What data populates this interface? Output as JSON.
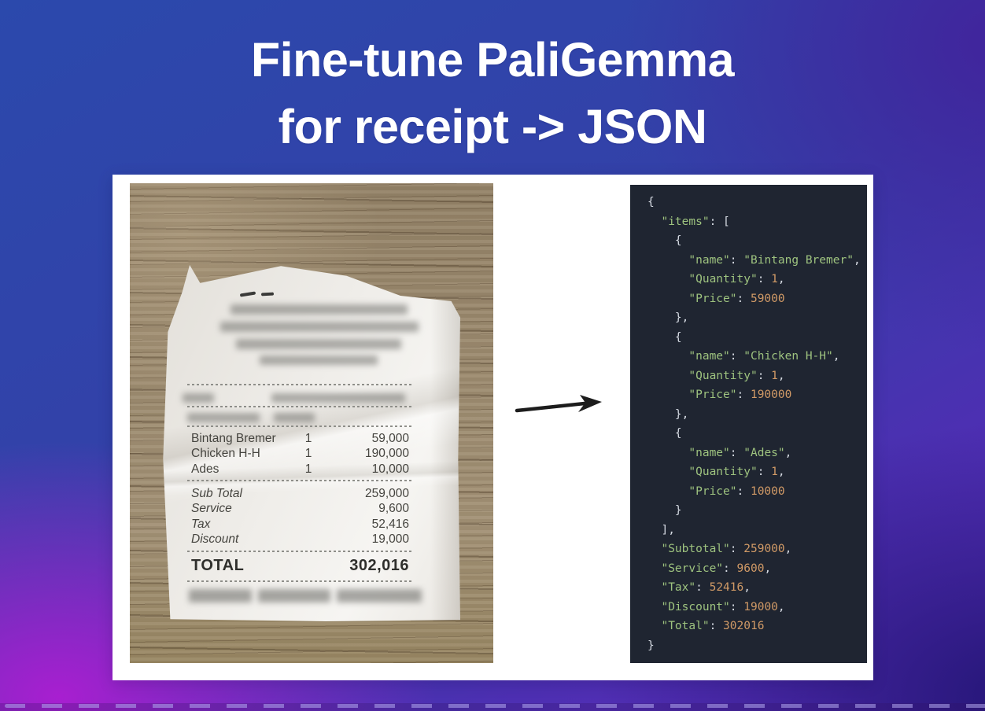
{
  "title": {
    "line1": "Fine-tune PaliGemma",
    "line2": "for receipt -> JSON"
  },
  "receipt_photo": {
    "items": [
      {
        "name": "Bintang Bremer",
        "qty": "1",
        "price": "59,000"
      },
      {
        "name": "Chicken H-H",
        "qty": "1",
        "price": "190,000"
      },
      {
        "name": "Ades",
        "qty": "1",
        "price": "10,000"
      }
    ],
    "summary": [
      {
        "label": "Sub Total",
        "value": "259,000"
      },
      {
        "label": "Service",
        "value": "9,600"
      },
      {
        "label": "Tax",
        "value": "52,416"
      },
      {
        "label": "Discount",
        "value": "19,000"
      }
    ],
    "total": {
      "label": "TOTAL",
      "value": "302,016"
    }
  },
  "json_panel": {
    "lines": [
      [
        {
          "c": "pun",
          "t": "{"
        }
      ],
      [
        {
          "c": "pun",
          "t": "  "
        },
        {
          "c": "key",
          "t": "\"items\""
        },
        {
          "c": "pun",
          "t": ": ["
        }
      ],
      [
        {
          "c": "pun",
          "t": "    {"
        }
      ],
      [
        {
          "c": "pun",
          "t": "      "
        },
        {
          "c": "key",
          "t": "\"name\""
        },
        {
          "c": "pun",
          "t": ": "
        },
        {
          "c": "str",
          "t": "\"Bintang Bremer\""
        },
        {
          "c": "pun",
          "t": ","
        }
      ],
      [
        {
          "c": "pun",
          "t": "      "
        },
        {
          "c": "key",
          "t": "\"Quantity\""
        },
        {
          "c": "pun",
          "t": ": "
        },
        {
          "c": "num",
          "t": "1"
        },
        {
          "c": "pun",
          "t": ","
        }
      ],
      [
        {
          "c": "pun",
          "t": "      "
        },
        {
          "c": "key",
          "t": "\"Price\""
        },
        {
          "c": "pun",
          "t": ": "
        },
        {
          "c": "num",
          "t": "59000"
        }
      ],
      [
        {
          "c": "pun",
          "t": "    },"
        }
      ],
      [
        {
          "c": "pun",
          "t": "    {"
        }
      ],
      [
        {
          "c": "pun",
          "t": "      "
        },
        {
          "c": "key",
          "t": "\"name\""
        },
        {
          "c": "pun",
          "t": ": "
        },
        {
          "c": "str",
          "t": "\"Chicken H-H\""
        },
        {
          "c": "pun",
          "t": ","
        }
      ],
      [
        {
          "c": "pun",
          "t": "      "
        },
        {
          "c": "key",
          "t": "\"Quantity\""
        },
        {
          "c": "pun",
          "t": ": "
        },
        {
          "c": "num",
          "t": "1"
        },
        {
          "c": "pun",
          "t": ","
        }
      ],
      [
        {
          "c": "pun",
          "t": "      "
        },
        {
          "c": "key",
          "t": "\"Price\""
        },
        {
          "c": "pun",
          "t": ": "
        },
        {
          "c": "num",
          "t": "190000"
        }
      ],
      [
        {
          "c": "pun",
          "t": "    },"
        }
      ],
      [
        {
          "c": "pun",
          "t": "    {"
        }
      ],
      [
        {
          "c": "pun",
          "t": "      "
        },
        {
          "c": "key",
          "t": "\"name\""
        },
        {
          "c": "pun",
          "t": ": "
        },
        {
          "c": "str",
          "t": "\"Ades\""
        },
        {
          "c": "pun",
          "t": ","
        }
      ],
      [
        {
          "c": "pun",
          "t": "      "
        },
        {
          "c": "key",
          "t": "\"Quantity\""
        },
        {
          "c": "pun",
          "t": ": "
        },
        {
          "c": "num",
          "t": "1"
        },
        {
          "c": "pun",
          "t": ","
        }
      ],
      [
        {
          "c": "pun",
          "t": "      "
        },
        {
          "c": "key",
          "t": "\"Price\""
        },
        {
          "c": "pun",
          "t": ": "
        },
        {
          "c": "num",
          "t": "10000"
        }
      ],
      [
        {
          "c": "pun",
          "t": "    }"
        }
      ],
      [
        {
          "c": "pun",
          "t": "  ],"
        }
      ],
      [
        {
          "c": "pun",
          "t": "  "
        },
        {
          "c": "key",
          "t": "\"Subtotal\""
        },
        {
          "c": "pun",
          "t": ": "
        },
        {
          "c": "num",
          "t": "259000"
        },
        {
          "c": "pun",
          "t": ","
        }
      ],
      [
        {
          "c": "pun",
          "t": "  "
        },
        {
          "c": "key",
          "t": "\"Service\""
        },
        {
          "c": "pun",
          "t": ": "
        },
        {
          "c": "num",
          "t": "9600"
        },
        {
          "c": "pun",
          "t": ","
        }
      ],
      [
        {
          "c": "pun",
          "t": "  "
        },
        {
          "c": "key",
          "t": "\"Tax\""
        },
        {
          "c": "pun",
          "t": ": "
        },
        {
          "c": "num",
          "t": "52416"
        },
        {
          "c": "pun",
          "t": ","
        }
      ],
      [
        {
          "c": "pun",
          "t": "  "
        },
        {
          "c": "key",
          "t": "\"Discount\""
        },
        {
          "c": "pun",
          "t": ": "
        },
        {
          "c": "num",
          "t": "19000"
        },
        {
          "c": "pun",
          "t": ","
        }
      ],
      [
        {
          "c": "pun",
          "t": "  "
        },
        {
          "c": "key",
          "t": "\"Total\""
        },
        {
          "c": "pun",
          "t": ": "
        },
        {
          "c": "num",
          "t": "302016"
        }
      ],
      [
        {
          "c": "pun",
          "t": "}"
        }
      ]
    ]
  },
  "colors": {
    "code_bg": "#1f2531",
    "code_key_string": "#9ec37f",
    "code_number": "#d19a66",
    "code_punct": "#d7dce4",
    "bg_blue": "#2b49ac",
    "bg_violet": "#5533bb",
    "bg_magenta": "#a81fd0",
    "bg_indigo": "#241677",
    "card_bg": "#ffffff"
  }
}
